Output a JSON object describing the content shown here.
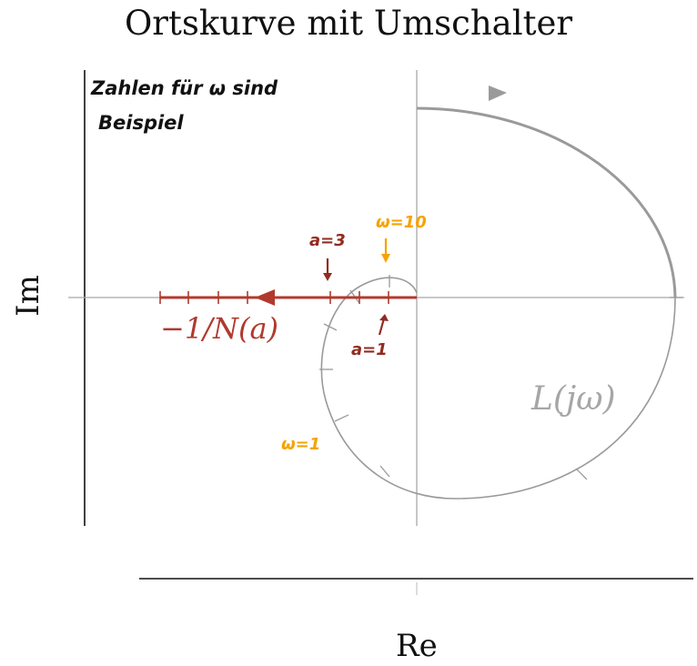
{
  "figure": {
    "title": "Ortskurve mit Umschalter",
    "xlabel": "Re",
    "ylabel": "Im",
    "note_line1": "Zahlen für ω sind",
    "note_line2": "Beispiel",
    "curve_L_label": "L(jω)",
    "curve_N_label": "−1/N(a)",
    "annotation_a3": "a=3",
    "annotation_a1": "a=1",
    "annotation_w10": "ω=10",
    "annotation_w1": "ω=1"
  },
  "colors": {
    "nyquist": "#9a9a9a",
    "describing_function": "#b03a2e",
    "red_annotation": "#922b21",
    "orange_annotation": "#f5a300",
    "axis": "#111111",
    "grid_axis": "#a8a8a8"
  }
}
